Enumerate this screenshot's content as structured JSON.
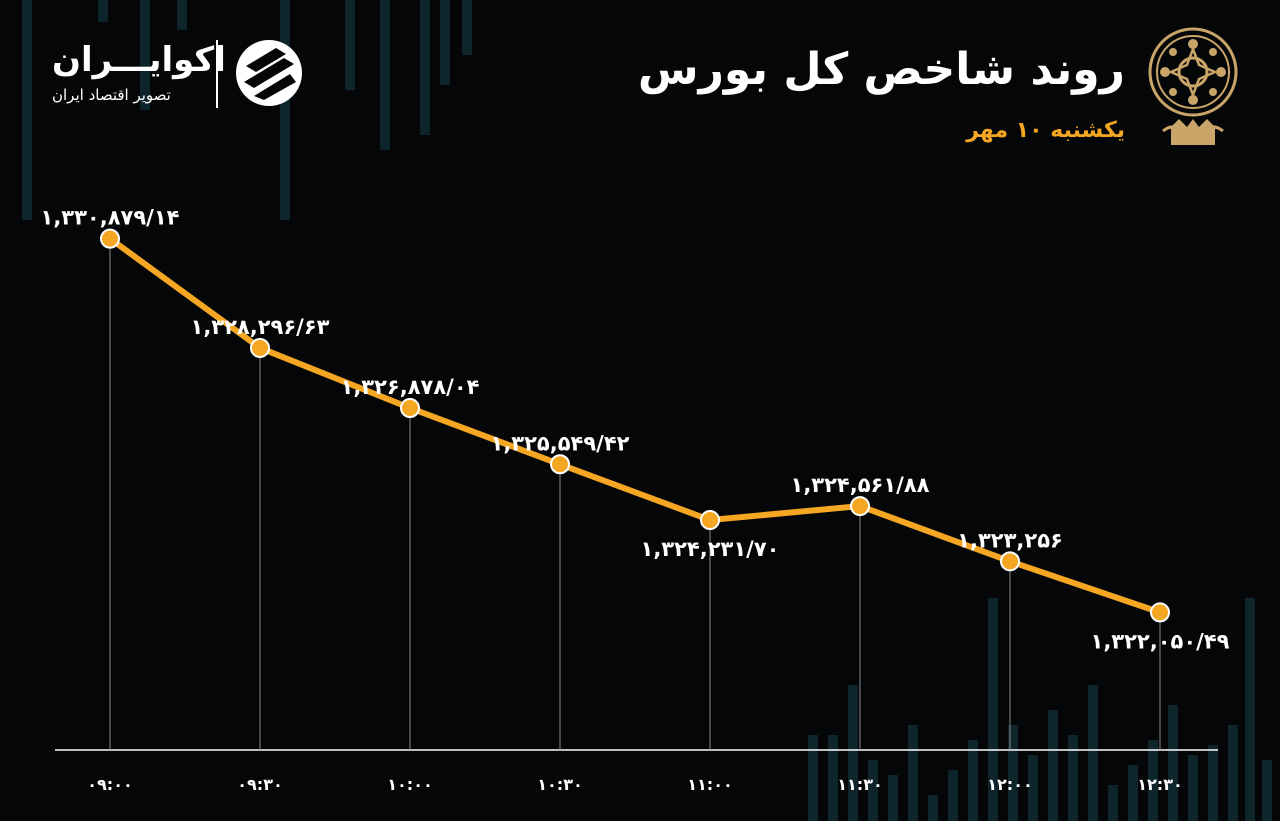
{
  "header": {
    "title": "روند شاخص کل بورس",
    "subtitle": "یکشنبه ۱۰ مهر"
  },
  "brand": {
    "name": "اکوایـــران",
    "tagline": "تصویر اقتصاد ایران"
  },
  "colors": {
    "background": "#050607",
    "line": "#f5a623",
    "point_fill": "#f5a623",
    "point_stroke": "#ffffff",
    "text": "#ffffff",
    "accent": "#f5a623",
    "decor_bars": "#0f2a30"
  },
  "chart_data": {
    "type": "line",
    "title": "روند شاخص کل بورس",
    "subtitle": "یکشنبه ۱۰ مهر",
    "xlabel": "",
    "ylabel": "",
    "categories": [
      "۰۹:۰۰",
      "۰۹:۳۰",
      "۱۰:۰۰",
      "۱۰:۳۰",
      "۱۱:۰۰",
      "۱۱:۳۰",
      "۱۲:۰۰",
      "۱۲:۳۰"
    ],
    "values": [
      1330879.14,
      1328296.63,
      1326878.04,
      1325549.42,
      1324231.7,
      1324561.88,
      1323256,
      1322050.49
    ],
    "data_labels": [
      "۱,۳۳۰,۸۷۹/۱۴",
      "۱,۳۲۸,۲۹۶/۶۳",
      "۱,۳۲۶,۸۷۸/۰۴",
      "۱,۳۲۵,۵۴۹/۴۲",
      "۱,۳۲۴,۲۳۱/۷۰",
      "۱,۳۲۴,۵۶۱/۸۸",
      "۱,۳۲۳,۲۵۶",
      "۱,۳۲۲,۰۵۰/۴۹"
    ],
    "label_positions": [
      "above",
      "above",
      "above",
      "above",
      "below",
      "above",
      "above",
      "below"
    ],
    "ylim": [
      1318800,
      1332500
    ],
    "grid": false,
    "legend": "none"
  }
}
